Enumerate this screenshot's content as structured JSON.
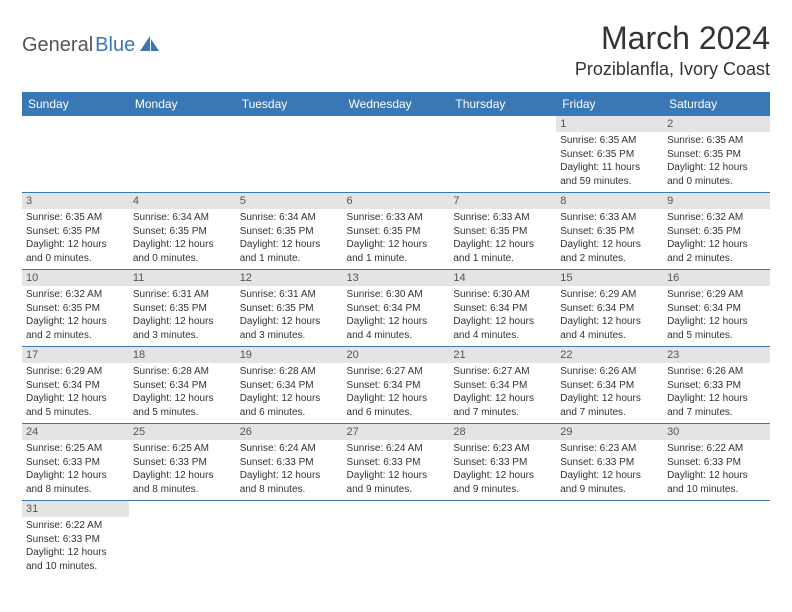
{
  "logo": {
    "part1": "General",
    "part2": "Blue"
  },
  "title": "March 2024",
  "location": "Proziblanfla, Ivory Coast",
  "colors": {
    "header_bg": "#3a78b5",
    "header_fg": "#ffffff",
    "daynum_bg": "#e4e4e4",
    "border": "#3a78b5",
    "logo_blue": "#3a78b5",
    "logo_gray": "#555555"
  },
  "day_names": [
    "Sunday",
    "Monday",
    "Tuesday",
    "Wednesday",
    "Thursday",
    "Friday",
    "Saturday"
  ],
  "weeks": [
    [
      {
        "n": "",
        "sr": "",
        "ss": "",
        "dl": "",
        "dl2": ""
      },
      {
        "n": "",
        "sr": "",
        "ss": "",
        "dl": "",
        "dl2": ""
      },
      {
        "n": "",
        "sr": "",
        "ss": "",
        "dl": "",
        "dl2": ""
      },
      {
        "n": "",
        "sr": "",
        "ss": "",
        "dl": "",
        "dl2": ""
      },
      {
        "n": "",
        "sr": "",
        "ss": "",
        "dl": "",
        "dl2": ""
      },
      {
        "n": "1",
        "sr": "Sunrise: 6:35 AM",
        "ss": "Sunset: 6:35 PM",
        "dl": "Daylight: 11 hours",
        "dl2": "and 59 minutes."
      },
      {
        "n": "2",
        "sr": "Sunrise: 6:35 AM",
        "ss": "Sunset: 6:35 PM",
        "dl": "Daylight: 12 hours",
        "dl2": "and 0 minutes."
      }
    ],
    [
      {
        "n": "3",
        "sr": "Sunrise: 6:35 AM",
        "ss": "Sunset: 6:35 PM",
        "dl": "Daylight: 12 hours",
        "dl2": "and 0 minutes."
      },
      {
        "n": "4",
        "sr": "Sunrise: 6:34 AM",
        "ss": "Sunset: 6:35 PM",
        "dl": "Daylight: 12 hours",
        "dl2": "and 0 minutes."
      },
      {
        "n": "5",
        "sr": "Sunrise: 6:34 AM",
        "ss": "Sunset: 6:35 PM",
        "dl": "Daylight: 12 hours",
        "dl2": "and 1 minute."
      },
      {
        "n": "6",
        "sr": "Sunrise: 6:33 AM",
        "ss": "Sunset: 6:35 PM",
        "dl": "Daylight: 12 hours",
        "dl2": "and 1 minute."
      },
      {
        "n": "7",
        "sr": "Sunrise: 6:33 AM",
        "ss": "Sunset: 6:35 PM",
        "dl": "Daylight: 12 hours",
        "dl2": "and 1 minute."
      },
      {
        "n": "8",
        "sr": "Sunrise: 6:33 AM",
        "ss": "Sunset: 6:35 PM",
        "dl": "Daylight: 12 hours",
        "dl2": "and 2 minutes."
      },
      {
        "n": "9",
        "sr": "Sunrise: 6:32 AM",
        "ss": "Sunset: 6:35 PM",
        "dl": "Daylight: 12 hours",
        "dl2": "and 2 minutes."
      }
    ],
    [
      {
        "n": "10",
        "sr": "Sunrise: 6:32 AM",
        "ss": "Sunset: 6:35 PM",
        "dl": "Daylight: 12 hours",
        "dl2": "and 2 minutes."
      },
      {
        "n": "11",
        "sr": "Sunrise: 6:31 AM",
        "ss": "Sunset: 6:35 PM",
        "dl": "Daylight: 12 hours",
        "dl2": "and 3 minutes."
      },
      {
        "n": "12",
        "sr": "Sunrise: 6:31 AM",
        "ss": "Sunset: 6:35 PM",
        "dl": "Daylight: 12 hours",
        "dl2": "and 3 minutes."
      },
      {
        "n": "13",
        "sr": "Sunrise: 6:30 AM",
        "ss": "Sunset: 6:34 PM",
        "dl": "Daylight: 12 hours",
        "dl2": "and 4 minutes."
      },
      {
        "n": "14",
        "sr": "Sunrise: 6:30 AM",
        "ss": "Sunset: 6:34 PM",
        "dl": "Daylight: 12 hours",
        "dl2": "and 4 minutes."
      },
      {
        "n": "15",
        "sr": "Sunrise: 6:29 AM",
        "ss": "Sunset: 6:34 PM",
        "dl": "Daylight: 12 hours",
        "dl2": "and 4 minutes."
      },
      {
        "n": "16",
        "sr": "Sunrise: 6:29 AM",
        "ss": "Sunset: 6:34 PM",
        "dl": "Daylight: 12 hours",
        "dl2": "and 5 minutes."
      }
    ],
    [
      {
        "n": "17",
        "sr": "Sunrise: 6:29 AM",
        "ss": "Sunset: 6:34 PM",
        "dl": "Daylight: 12 hours",
        "dl2": "and 5 minutes."
      },
      {
        "n": "18",
        "sr": "Sunrise: 6:28 AM",
        "ss": "Sunset: 6:34 PM",
        "dl": "Daylight: 12 hours",
        "dl2": "and 5 minutes."
      },
      {
        "n": "19",
        "sr": "Sunrise: 6:28 AM",
        "ss": "Sunset: 6:34 PM",
        "dl": "Daylight: 12 hours",
        "dl2": "and 6 minutes."
      },
      {
        "n": "20",
        "sr": "Sunrise: 6:27 AM",
        "ss": "Sunset: 6:34 PM",
        "dl": "Daylight: 12 hours",
        "dl2": "and 6 minutes."
      },
      {
        "n": "21",
        "sr": "Sunrise: 6:27 AM",
        "ss": "Sunset: 6:34 PM",
        "dl": "Daylight: 12 hours",
        "dl2": "and 7 minutes."
      },
      {
        "n": "22",
        "sr": "Sunrise: 6:26 AM",
        "ss": "Sunset: 6:34 PM",
        "dl": "Daylight: 12 hours",
        "dl2": "and 7 minutes."
      },
      {
        "n": "23",
        "sr": "Sunrise: 6:26 AM",
        "ss": "Sunset: 6:33 PM",
        "dl": "Daylight: 12 hours",
        "dl2": "and 7 minutes."
      }
    ],
    [
      {
        "n": "24",
        "sr": "Sunrise: 6:25 AM",
        "ss": "Sunset: 6:33 PM",
        "dl": "Daylight: 12 hours",
        "dl2": "and 8 minutes."
      },
      {
        "n": "25",
        "sr": "Sunrise: 6:25 AM",
        "ss": "Sunset: 6:33 PM",
        "dl": "Daylight: 12 hours",
        "dl2": "and 8 minutes."
      },
      {
        "n": "26",
        "sr": "Sunrise: 6:24 AM",
        "ss": "Sunset: 6:33 PM",
        "dl": "Daylight: 12 hours",
        "dl2": "and 8 minutes."
      },
      {
        "n": "27",
        "sr": "Sunrise: 6:24 AM",
        "ss": "Sunset: 6:33 PM",
        "dl": "Daylight: 12 hours",
        "dl2": "and 9 minutes."
      },
      {
        "n": "28",
        "sr": "Sunrise: 6:23 AM",
        "ss": "Sunset: 6:33 PM",
        "dl": "Daylight: 12 hours",
        "dl2": "and 9 minutes."
      },
      {
        "n": "29",
        "sr": "Sunrise: 6:23 AM",
        "ss": "Sunset: 6:33 PM",
        "dl": "Daylight: 12 hours",
        "dl2": "and 9 minutes."
      },
      {
        "n": "30",
        "sr": "Sunrise: 6:22 AM",
        "ss": "Sunset: 6:33 PM",
        "dl": "Daylight: 12 hours",
        "dl2": "and 10 minutes."
      }
    ],
    [
      {
        "n": "31",
        "sr": "Sunrise: 6:22 AM",
        "ss": "Sunset: 6:33 PM",
        "dl": "Daylight: 12 hours",
        "dl2": "and 10 minutes."
      },
      {
        "n": "",
        "sr": "",
        "ss": "",
        "dl": "",
        "dl2": ""
      },
      {
        "n": "",
        "sr": "",
        "ss": "",
        "dl": "",
        "dl2": ""
      },
      {
        "n": "",
        "sr": "",
        "ss": "",
        "dl": "",
        "dl2": ""
      },
      {
        "n": "",
        "sr": "",
        "ss": "",
        "dl": "",
        "dl2": ""
      },
      {
        "n": "",
        "sr": "",
        "ss": "",
        "dl": "",
        "dl2": ""
      },
      {
        "n": "",
        "sr": "",
        "ss": "",
        "dl": "",
        "dl2": ""
      }
    ]
  ]
}
